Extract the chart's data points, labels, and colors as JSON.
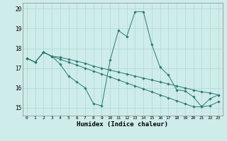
{
  "xlabel": "Humidex (Indice chaleur)",
  "background_color": "#ceecea",
  "grid_color": "#aed8d4",
  "line_color": "#2a7a70",
  "xlim": [
    -0.5,
    23.5
  ],
  "ylim": [
    14.6,
    20.3
  ],
  "xticks": [
    0,
    1,
    2,
    3,
    4,
    5,
    6,
    7,
    8,
    9,
    10,
    11,
    12,
    13,
    14,
    15,
    16,
    17,
    18,
    19,
    20,
    21,
    22,
    23
  ],
  "yticks": [
    15,
    16,
    17,
    18,
    19,
    20
  ],
  "series": [
    {
      "x": [
        0,
        1,
        2,
        3,
        4,
        5,
        6,
        7,
        8,
        9,
        10,
        11,
        12,
        13,
        14,
        15,
        16,
        17,
        18,
        19,
        20,
        21,
        22,
        23
      ],
      "y": [
        17.5,
        17.3,
        17.8,
        17.6,
        17.2,
        16.6,
        16.3,
        16.0,
        15.2,
        15.1,
        17.4,
        18.9,
        18.6,
        19.85,
        19.85,
        18.2,
        17.05,
        16.65,
        15.9,
        15.85,
        15.55,
        15.05,
        15.45,
        15.65
      ]
    },
    {
      "x": [
        0,
        1,
        2,
        3,
        4,
        5,
        6,
        7,
        8,
        9,
        10,
        11,
        12,
        13,
        14,
        15,
        16,
        17,
        18,
        19,
        20,
        21,
        22,
        23
      ],
      "y": [
        17.5,
        17.3,
        17.8,
        17.6,
        17.45,
        17.3,
        17.15,
        17.0,
        16.85,
        16.7,
        16.55,
        16.4,
        16.25,
        16.1,
        15.95,
        15.8,
        15.65,
        15.5,
        15.35,
        15.2,
        15.05,
        15.05,
        15.1,
        15.3
      ]
    },
    {
      "x": [
        0,
        1,
        2,
        3,
        4,
        5,
        6,
        7,
        8,
        9,
        10,
        11,
        12,
        13,
        14,
        15,
        16,
        17,
        18,
        19,
        20,
        21,
        22,
        23
      ],
      "y": [
        17.5,
        17.3,
        17.8,
        17.6,
        17.55,
        17.45,
        17.35,
        17.25,
        17.1,
        17.0,
        16.9,
        16.8,
        16.7,
        16.6,
        16.5,
        16.4,
        16.3,
        16.2,
        16.1,
        16.0,
        15.9,
        15.8,
        15.75,
        15.65
      ]
    }
  ]
}
